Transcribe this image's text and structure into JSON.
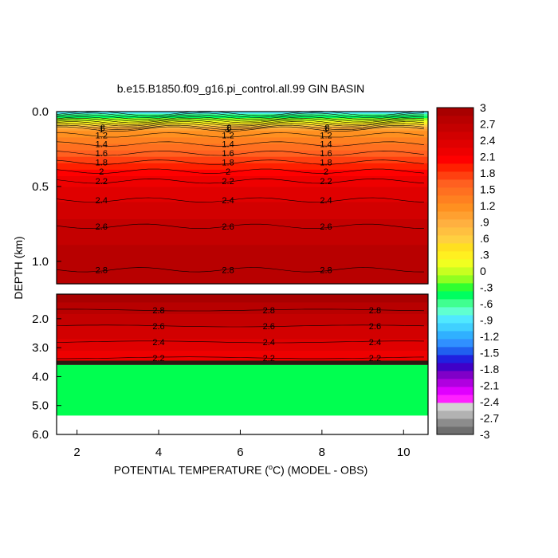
{
  "chart_data": {
    "type": "heatmap",
    "title": "b.e15.B1850.f09_g16.pi_control.all.99 GIN BASIN",
    "xlabel_prefix": "POTENTIAL TEMPERATURE (",
    "xlabel_unit_sup": "o",
    "xlabel_suffix": "C) (MODEL - OBS)",
    "ylabel": "DEPTH (km)",
    "x_ticks": [
      "2",
      "4",
      "6",
      "8",
      "10"
    ],
    "xlim": [
      1.5,
      10.6
    ],
    "upper_panel": {
      "ylim": [
        0,
        1.15
      ],
      "y_ticks": [
        "0.0",
        "0.5",
        "1.0"
      ],
      "contour_levels": [
        -0.8,
        -0.6,
        -0.4,
        -0.2,
        0,
        0.2,
        0.4,
        0.6,
        0.8,
        1,
        1.2,
        1.4,
        1.6,
        1.8,
        2,
        2.2,
        2.4,
        2.6,
        2.8
      ]
    },
    "lower_panel": {
      "ylim": [
        1.15,
        6.0
      ],
      "y_ticks": [
        "2.0",
        "3.0",
        "4.0",
        "5.0",
        "6.0"
      ],
      "contour_levels": [
        2.2,
        2.4,
        2.6,
        2.8
      ],
      "mask_value_region": "0 (green) from ~3.6 km to ~5.4 km"
    },
    "colorbar": {
      "range": [
        -3,
        3
      ],
      "labels": [
        "3",
        "2.7",
        "2.4",
        "2.1",
        "1.8",
        "1.5",
        "1.2",
        ".9",
        ".6",
        ".3",
        "0",
        "-.3",
        "-.6",
        "-.9",
        "-1.2",
        "-1.5",
        "-1.8",
        "-2.1",
        "-2.4",
        "-2.7",
        "-3"
      ],
      "colors": [
        "#6e6e6e",
        "#8c8c8c",
        "#b2b2b2",
        "#d2d2d2",
        "#ff20ff",
        "#e000ff",
        "#b000e0",
        "#8000c8",
        "#4000c8",
        "#2020e0",
        "#2060f0",
        "#3090ff",
        "#30b0ff",
        "#40d0ff",
        "#50e8ff",
        "#60ffd0",
        "#40ff90",
        "#00ff60",
        "#30ff30",
        "#90ff20",
        "#c8ff20",
        "#f0ff20",
        "#fff020",
        "#ffe020",
        "#ffd040",
        "#ffc040",
        "#ffb040",
        "#ffa030",
        "#ff9020",
        "#ff8020",
        "#ff7020",
        "#ff6020",
        "#ff4010",
        "#ff2000",
        "#ff0000",
        "#ee0000",
        "#e00000",
        "#d20000",
        "#c40000",
        "#b80000",
        "#a80000"
      ]
    }
  }
}
